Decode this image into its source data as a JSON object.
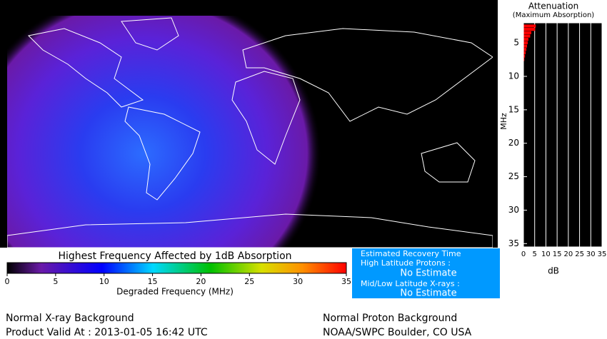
{
  "map": {
    "colorbar": {
      "title": "Highest Frequency Affected by 1dB Absorption",
      "label": "Degraded Frequency (MHz)",
      "xlim": [
        0,
        35
      ],
      "xticks": [
        0,
        5,
        10,
        15,
        20,
        25,
        30,
        35
      ]
    }
  },
  "recovery": {
    "title": "Estimated Recovery Time",
    "protons_label": "High Latitude Protons :",
    "protons_value": "No Estimate",
    "xrays_label": "Mid/Low Latitude X-rays :",
    "xrays_value": "No Estimate"
  },
  "footer": {
    "left_1": "Normal X-ray Background",
    "left_2": "Product Valid At : 2013-01-05 16:42 UTC",
    "right_1": "Normal Proton Background",
    "right_2": "NOAA/SWPC Boulder, CO USA"
  },
  "chart_data": {
    "type": "hbar",
    "title": "Attenuation",
    "subtitle": "(Maximum Absorption)",
    "x_label": "dB",
    "y_label": "MHz",
    "color": "#ff0000",
    "x": [
      2.5,
      3,
      3.5,
      4,
      4.5,
      5,
      5.5,
      6,
      6.5,
      7,
      7.5
    ],
    "values": [
      5.5,
      5.2,
      3.5,
      3.0,
      2.2,
      1.9,
      1.6,
      1.3,
      1.0,
      0.7,
      0.4
    ],
    "xlim": [
      0,
      35
    ],
    "xticks": [
      0,
      5,
      10,
      15,
      20,
      25,
      30,
      35
    ],
    "ylim": [
      2,
      35.5
    ],
    "yticks": [
      5,
      10,
      15,
      20,
      25,
      30,
      35
    ],
    "grid": true
  }
}
